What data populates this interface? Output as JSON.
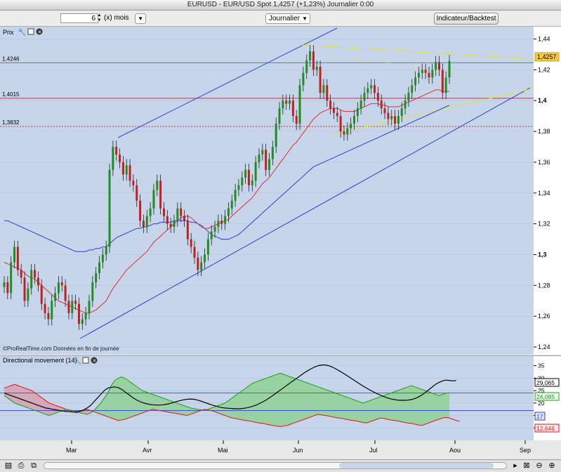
{
  "window": {
    "title": "EURUSD - EUR/USD Spot     1,4257 (+1,23%)     Journalier  0:00"
  },
  "toolbar": {
    "period_value": "6",
    "period_unit": "(x) mois",
    "interval": "Journalier",
    "indicator_button": "Indicateur/Backtest"
  },
  "price_panel": {
    "name": "Prix",
    "footer": "©ProRealTime.com  Données en fin de journée"
  },
  "dm_panel": {
    "name": "Directional movement  (14)"
  },
  "chart_data": [
    {
      "type": "candlestick",
      "title": "EURUSD - EUR/USD Spot",
      "x_ticks": [
        "Mar",
        "Avr",
        "Mai",
        "Jun",
        "Jul",
        "Aou",
        "Sep"
      ],
      "y_ticks": [
        "1,24",
        "1,26",
        "1,28",
        "1,3",
        "1,32",
        "1,34",
        "1,36",
        "1,38",
        "1,4",
        "1,42",
        "1,44"
      ],
      "ylim": [
        1.235,
        1.448
      ],
      "last_price": "1,4257",
      "levels": [
        {
          "label": "1,4246",
          "value": 1.4246,
          "color": "#2e9a2e",
          "style": "solid"
        },
        {
          "label": "1,4015",
          "value": 1.4015,
          "color": "#d02020",
          "style": "solid"
        },
        {
          "label": "1,3832",
          "value": 1.3832,
          "color": "#d02020",
          "style": "dashed"
        }
      ],
      "closes": [
        1.282,
        1.275,
        1.295,
        1.305,
        1.29,
        1.285,
        1.27,
        1.278,
        1.29,
        1.285,
        1.28,
        1.268,
        1.262,
        1.258,
        1.27,
        1.275,
        1.282,
        1.28,
        1.27,
        1.262,
        1.27,
        1.268,
        1.255,
        1.258,
        1.262,
        1.27,
        1.282,
        1.288,
        1.295,
        1.3,
        1.305,
        1.355,
        1.37,
        1.365,
        1.36,
        1.352,
        1.358,
        1.348,
        1.345,
        1.335,
        1.322,
        1.318,
        1.325,
        1.33,
        1.342,
        1.348,
        1.33,
        1.325,
        1.32,
        1.318,
        1.322,
        1.33,
        1.325,
        1.322,
        1.31,
        1.305,
        1.298,
        1.29,
        1.295,
        1.3,
        1.31,
        1.315,
        1.318,
        1.322,
        1.32,
        1.325,
        1.33,
        1.335,
        1.342,
        1.345,
        1.35,
        1.355,
        1.345,
        1.348,
        1.36,
        1.365,
        1.368,
        1.355,
        1.362,
        1.37,
        1.385,
        1.395,
        1.4,
        1.398,
        1.4,
        1.39,
        1.385,
        1.41,
        1.418,
        1.426,
        1.432,
        1.42,
        1.422,
        1.405,
        1.41,
        1.4,
        1.395,
        1.392,
        1.39,
        1.38,
        1.378,
        1.382,
        1.385,
        1.39,
        1.395,
        1.4,
        1.405,
        1.408,
        1.41,
        1.405,
        1.4,
        1.395,
        1.392,
        1.388,
        1.39,
        1.385,
        1.39,
        1.395,
        1.4,
        1.405,
        1.41,
        1.415,
        1.418,
        1.42,
        1.418,
        1.415,
        1.42,
        1.425,
        1.42,
        1.405,
        1.415,
        1.4257
      ],
      "ma20": [
        1.295,
        1.294,
        1.293,
        1.292,
        1.291,
        1.29,
        1.288,
        1.286,
        1.285,
        1.284,
        1.282,
        1.28,
        1.278,
        1.276,
        1.274,
        1.272,
        1.27,
        1.269,
        1.268,
        1.267,
        1.266,
        1.265,
        1.264,
        1.263,
        1.262,
        1.262,
        1.263,
        1.264,
        1.266,
        1.268,
        1.27,
        1.274,
        1.278,
        1.281,
        1.284,
        1.287,
        1.29,
        1.292,
        1.294,
        1.296,
        1.298,
        1.3,
        1.302,
        1.305,
        1.308,
        1.31,
        1.312,
        1.314,
        1.316,
        1.318,
        1.32,
        1.322,
        1.324,
        1.325,
        1.325,
        1.324,
        1.322,
        1.32,
        1.318,
        1.317,
        1.317,
        1.318,
        1.319,
        1.32,
        1.321,
        1.322,
        1.323,
        1.325,
        1.327,
        1.329,
        1.331,
        1.333,
        1.335,
        1.337,
        1.34,
        1.343,
        1.346,
        1.348,
        1.35,
        1.353,
        1.356,
        1.359,
        1.362,
        1.365,
        1.368,
        1.371,
        1.373,
        1.376,
        1.379,
        1.382,
        1.385,
        1.388,
        1.39,
        1.392,
        1.393,
        1.394,
        1.395,
        1.395,
        1.395,
        1.394,
        1.393,
        1.393,
        1.393,
        1.393,
        1.394,
        1.395,
        1.396,
        1.397,
        1.398,
        1.398,
        1.398,
        1.397,
        1.397,
        1.396,
        1.396,
        1.396,
        1.396,
        1.397,
        1.398,
        1.399,
        1.4,
        1.401,
        1.402,
        1.403,
        1.404,
        1.405,
        1.406,
        1.407,
        1.407,
        1.406,
        1.406,
        1.406
      ],
      "ma50": [
        1.322,
        1.322,
        1.321,
        1.32,
        1.319,
        1.318,
        1.317,
        1.316,
        1.315,
        1.314,
        1.313,
        1.312,
        1.311,
        1.31,
        1.309,
        1.308,
        1.307,
        1.306,
        1.305,
        1.304,
        1.303,
        1.302,
        1.302,
        1.302,
        1.302,
        1.303,
        1.303,
        1.304,
        1.304,
        1.305,
        1.305,
        1.307,
        1.309,
        1.311,
        1.312,
        1.313,
        1.314,
        1.315,
        1.316,
        1.317,
        1.317,
        1.318,
        1.318,
        1.319,
        1.32,
        1.32,
        1.321,
        1.321,
        1.321,
        1.321,
        1.322,
        1.322,
        1.322,
        1.322,
        1.322,
        1.321,
        1.321,
        1.32,
        1.319,
        1.317,
        1.315,
        1.313,
        1.312,
        1.311,
        1.31,
        1.31,
        1.31,
        1.311,
        1.312,
        1.313,
        1.315,
        1.317,
        1.319,
        1.321,
        1.323,
        1.325,
        1.327,
        1.329,
        1.331,
        1.333,
        1.335,
        1.337,
        1.339,
        1.341,
        1.343,
        1.345,
        1.347,
        1.349,
        1.351,
        1.353,
        1.355,
        1.357,
        1.358,
        1.359,
        1.36,
        1.361,
        1.362,
        1.363,
        1.364,
        1.365,
        1.366,
        1.367,
        1.368,
        1.369,
        1.37,
        1.371,
        1.372,
        1.373,
        1.374,
        1.375,
        1.376,
        1.377,
        1.378,
        1.379,
        1.38,
        1.381,
        1.382,
        1.383,
        1.384,
        1.385,
        1.386,
        1.387,
        1.388,
        1.389,
        1.39,
        1.391,
        1.392,
        1.393,
        1.394,
        1.395,
        1.396,
        1.397
      ]
    },
    {
      "type": "area",
      "title": "Directional movement (14)",
      "y_ticks": [
        "10",
        "15",
        "20",
        "25",
        "30",
        "35"
      ],
      "ylim": [
        5,
        38
      ],
      "last_values": {
        "adx": "29,065",
        "di_plus": "24,085",
        "level": "17",
        "di_minus": "12,646"
      },
      "levels": [
        {
          "value": 24
        },
        {
          "value": 17
        }
      ],
      "series": [
        {
          "color": "#000000",
          "values": [
            24,
            23.5,
            23,
            22.5,
            22,
            21.5,
            21,
            20.5,
            20,
            19.5,
            19,
            18.5,
            18,
            17.8,
            17.5,
            17.3,
            17,
            16.8,
            16.6,
            16.5,
            16.4,
            16.5,
            16.8,
            17.2,
            18,
            19,
            20.5,
            22,
            23.5,
            25,
            26,
            26.3,
            26.5,
            26.2,
            25.5,
            24.5,
            23.5,
            22.5,
            21.5,
            20.8,
            20.2,
            19.8,
            19.5,
            19.3,
            19.2,
            19.2,
            19.3,
            19.5,
            19.8,
            20.2,
            20.6,
            21,
            21.3,
            21.5,
            21.6,
            21.5,
            21.2,
            20.8,
            20.3,
            19.8,
            19.3,
            18.9,
            18.5,
            18.2,
            18,
            17.9,
            17.8,
            17.7,
            17.7,
            17.8,
            18,
            18.3,
            18.7,
            19.2,
            19.8,
            20.5,
            21.3,
            22.2,
            23.2,
            24.2,
            25.2,
            26.2,
            27.2,
            28.2,
            29.2,
            30.2,
            31.2,
            32.2,
            33,
            33.8,
            34.5,
            35,
            35.3,
            35.3,
            35,
            34.5,
            33.8,
            33,
            32.2,
            31.3,
            30.4,
            29.5,
            28.6,
            27.7,
            26.8,
            26,
            25.2,
            24.5,
            23.8,
            23.2,
            22.6,
            22.1,
            21.7,
            21.4,
            21.2,
            21.1,
            21.1,
            21.2,
            21.4,
            21.8,
            22.4,
            23.2,
            24.2,
            25.3,
            26.4,
            27.5,
            28.3,
            28.9,
            29.2,
            29.1,
            28.9,
            29.065
          ]
        },
        {
          "color": "#2e9a2e",
          "values": [
            23,
            22,
            21,
            20,
            19.5,
            19,
            18.5,
            18,
            17.5,
            17,
            16.5,
            16,
            15.5,
            15,
            15.5,
            16,
            16.5,
            17,
            17.5,
            17.2,
            17,
            16.5,
            16,
            15.8,
            15.5,
            16,
            17,
            18.5,
            20,
            22,
            24,
            27,
            29,
            30,
            30.5,
            30,
            29,
            28,
            27,
            26,
            25,
            24.5,
            24,
            23.5,
            23,
            22.5,
            22,
            21.5,
            21,
            20.5,
            20,
            19.5,
            19,
            18.5,
            18,
            17.8,
            17.5,
            17.3,
            17,
            17.5,
            18,
            18.5,
            19,
            19.5,
            20,
            21,
            22,
            23,
            24,
            25,
            26,
            27,
            28,
            28.5,
            29,
            29.5,
            30,
            30.5,
            31,
            31.5,
            32,
            31.5,
            31,
            30.5,
            30,
            29.5,
            29,
            28.5,
            28,
            27.5,
            27,
            26.5,
            26,
            25.5,
            25,
            24.5,
            24,
            23.5,
            23,
            22.5,
            22,
            21.5,
            21,
            20.5,
            20,
            20.5,
            21,
            21.5,
            22,
            22.5,
            23,
            23.5,
            24,
            24.5,
            25,
            25.5,
            26,
            26.5,
            27,
            26.5,
            26,
            25.5,
            25,
            24.5,
            24,
            23.5,
            23,
            23.5,
            24,
            24.085
          ]
        },
        {
          "color": "#d02020",
          "values": [
            26,
            26.5,
            27,
            27.5,
            27,
            26.5,
            26,
            25.5,
            25,
            24,
            23,
            22,
            21,
            20,
            19.5,
            19,
            18.5,
            18,
            17.5,
            17,
            16.5,
            16,
            16.5,
            17,
            17.5,
            17,
            16.5,
            16,
            15.5,
            15,
            14.5,
            14,
            13.5,
            13,
            13.2,
            13.5,
            14,
            14.5,
            15,
            15.5,
            16,
            16.5,
            17,
            17.5,
            17.2,
            17,
            16.8,
            16.5,
            16.2,
            16,
            15.8,
            15.5,
            15.3,
            15,
            15.5,
            16,
            16.5,
            17,
            17.5,
            17.2,
            17,
            16.5,
            16,
            15.5,
            15,
            14.5,
            14,
            13.8,
            13.5,
            13.2,
            13,
            12.8,
            12.5,
            12.2,
            12,
            11.8,
            11.5,
            11.2,
            11,
            10.8,
            10.5,
            10.8,
            11,
            11.5,
            12,
            12.5,
            13,
            13.5,
            14,
            14.5,
            15,
            15.5,
            15.2,
            15,
            14.8,
            14.5,
            14.2,
            14,
            13.8,
            13.5,
            13.2,
            13,
            12.8,
            12.5,
            12.2,
            12,
            12.5,
            13,
            13.5,
            14,
            13.8,
            13.5,
            13.2,
            13,
            12.8,
            12.5,
            12.2,
            12,
            11.8,
            11.5,
            11.2,
            11,
            11.5,
            12,
            12.5,
            13,
            13.5,
            14,
            14.2,
            14,
            13.5,
            13,
            12.646
          ]
        }
      ]
    }
  ]
}
